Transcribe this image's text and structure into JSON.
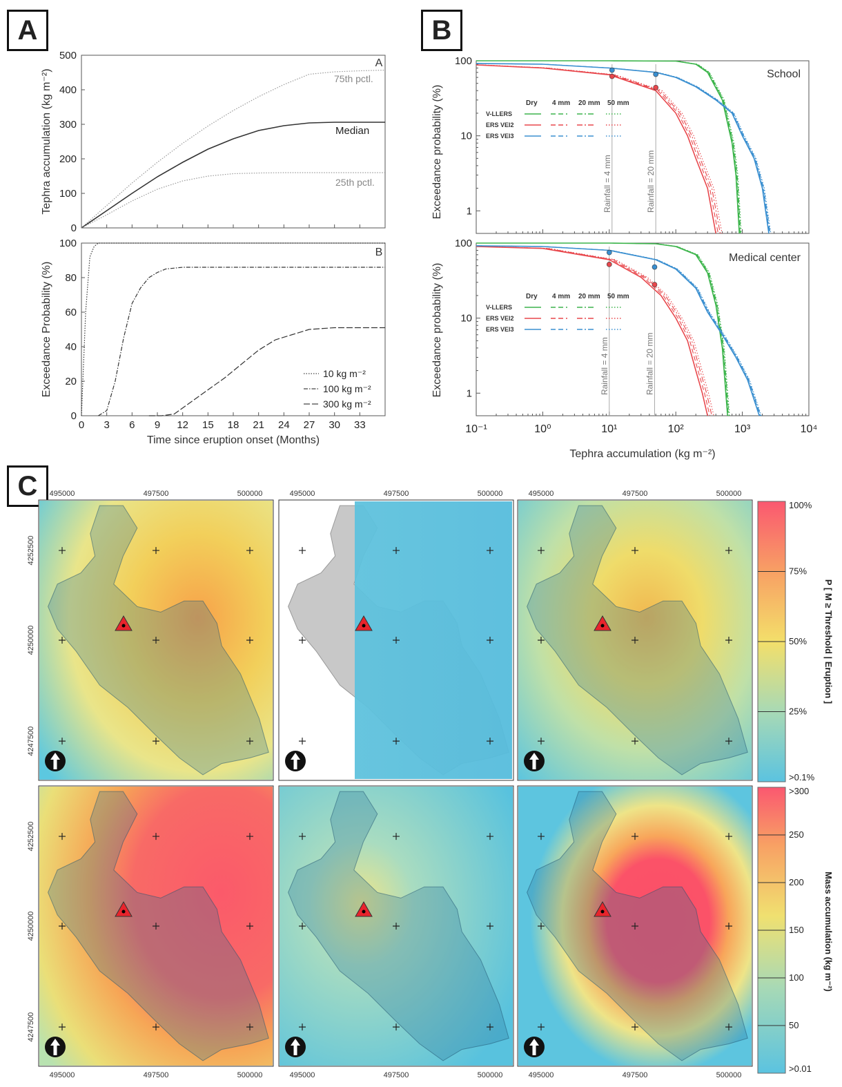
{
  "panel_labels": {
    "a": "A",
    "b": "B",
    "c": "C"
  },
  "panel_a": {
    "top": {
      "corner_label": "A",
      "ylabel": "Tephra accumulation (kg m⁻²)",
      "yticks": [
        "0",
        "100",
        "200",
        "300",
        "400",
        "500"
      ],
      "annotations": {
        "p75": "75th pctl.",
        "median": "Median",
        "p25": "25th pctl."
      }
    },
    "bottom": {
      "corner_label": "B",
      "ylabel": "Exceedance Probability (%)",
      "yticks": [
        "0",
        "20",
        "40",
        "60",
        "80",
        "100"
      ],
      "xticks": [
        "0",
        "3",
        "6",
        "9",
        "12",
        "15",
        "18",
        "21",
        "24",
        "27",
        "30",
        "33"
      ],
      "xlabel": "Time since eruption onset (Months)",
      "legend": [
        "10 kg m⁻²",
        "100 kg m⁻²",
        "300 kg m⁻²"
      ]
    }
  },
  "panel_b": {
    "ylabel": "Exceedance probability (%)",
    "xlabel": "Tephra accumulation (kg m⁻²)",
    "yticks": [
      "1",
      "10",
      "100"
    ],
    "xticks": [
      "10⁻¹",
      "10⁰",
      "10¹",
      "10²",
      "10³",
      "10⁴"
    ],
    "plots": [
      {
        "title": "School",
        "rain4": "Rainfall = 4 mm",
        "rain20": "Rainfall = 20 mm"
      },
      {
        "title": "Medical center",
        "rain4": "Rainfall = 4 mm",
        "rain20": "Rainfall = 20 mm"
      }
    ],
    "legend_cols": [
      "Dry",
      "4 mm",
      "20 mm",
      "50 mm"
    ],
    "legend_rows": [
      {
        "label": "V-LLERS",
        "color": "#3cb44b"
      },
      {
        "label": "ERS VEI2",
        "color": "#e8474c"
      },
      {
        "label": "ERS VEI3",
        "color": "#3a8fd0"
      }
    ]
  },
  "panel_c": {
    "x_coords": [
      "495000",
      "497500",
      "500000"
    ],
    "y_coords": [
      "4252500",
      "4250000",
      "4247500"
    ],
    "cb_top": {
      "label": "P [ M ≥ Threshold | Eruption ]",
      "ticks": [
        "100%",
        "75%",
        "50%",
        "25%",
        ">0.1%"
      ]
    },
    "cb_bottom": {
      "label": "Mass accumulation (kg m⁻²)",
      "ticks": [
        ">300",
        "250",
        "200",
        "150",
        "100",
        "50",
        ">0.01"
      ]
    }
  },
  "chart_data": [
    {
      "type": "line",
      "title": "",
      "xlabel": "Time since eruption onset (Months)",
      "ylabel": "Tephra accumulation (kg m⁻²)",
      "xlim": [
        0,
        36
      ],
      "ylim": [
        0,
        500
      ],
      "x": [
        0,
        3,
        6,
        9,
        12,
        15,
        18,
        21,
        24,
        27,
        30,
        33,
        36
      ],
      "series": [
        {
          "name": "75th pctl.",
          "values": [
            0,
            65,
            130,
            190,
            245,
            295,
            340,
            380,
            415,
            445,
            452,
            455,
            457
          ]
        },
        {
          "name": "Median",
          "values": [
            0,
            50,
            100,
            148,
            190,
            228,
            258,
            282,
            296,
            304,
            306,
            306,
            306
          ]
        },
        {
          "name": "25th pctl.",
          "values": [
            0,
            38,
            78,
            112,
            136,
            150,
            157,
            159,
            160,
            160,
            160,
            160,
            160
          ]
        }
      ]
    },
    {
      "type": "line",
      "title": "",
      "xlabel": "Time since eruption onset (Months)",
      "ylabel": "Exceedance Probability (%)",
      "xlim": [
        0,
        36
      ],
      "ylim": [
        0,
        100
      ],
      "series": [
        {
          "name": "10 kg m⁻²",
          "x": [
            0,
            0.5,
            1,
            1.5,
            2,
            2.5,
            36
          ],
          "values": [
            0,
            60,
            92,
            98,
            100,
            100,
            100
          ]
        },
        {
          "name": "100 kg m⁻²",
          "x": [
            2,
            3,
            4,
            5,
            6,
            7,
            8,
            9,
            10,
            12,
            15,
            36
          ],
          "values": [
            0,
            3,
            20,
            45,
            65,
            74,
            80,
            83,
            85,
            86,
            86,
            86
          ]
        },
        {
          "name": "300 kg m⁻²",
          "x": [
            8,
            9.5,
            11,
            13,
            15,
            17,
            19,
            21,
            23,
            25,
            27,
            30,
            33,
            36
          ],
          "values": [
            0,
            0,
            1,
            8,
            15,
            22,
            30,
            38,
            44,
            47,
            50,
            51,
            51,
            51
          ]
        }
      ]
    },
    {
      "type": "line",
      "title": "School",
      "xlabel": "Tephra accumulation (kg m⁻²)",
      "ylabel": "Exceedance probability (%)",
      "xscale": "log",
      "yscale": "log",
      "xlim": [
        0.1,
        10000
      ],
      "ylim": [
        0.5,
        100
      ],
      "series": [
        {
          "name": "V-LLERS",
          "x": [
            0.1,
            1,
            10,
            100,
            200,
            300,
            500,
            700,
            800,
            900
          ],
          "values": [
            100,
            100,
            100,
            99,
            90,
            70,
            30,
            8,
            3,
            0.5
          ]
        },
        {
          "name": "ERS VEI2",
          "x": [
            0.1,
            1,
            10,
            50,
            100,
            150,
            200,
            300,
            400
          ],
          "values": [
            88,
            80,
            65,
            40,
            20,
            10,
            5,
            2,
            0.5
          ]
        },
        {
          "name": "ERS VEI3",
          "x": [
            0.1,
            1,
            10,
            50,
            100,
            200,
            400,
            700,
            1000,
            1500,
            2000,
            2500
          ],
          "values": [
            92,
            90,
            80,
            70,
            60,
            45,
            30,
            20,
            10,
            5,
            2,
            0.5
          ]
        }
      ]
    },
    {
      "type": "line",
      "title": "Medical center",
      "xlabel": "Tephra accumulation (kg m⁻²)",
      "ylabel": "Exceedance probability (%)",
      "xscale": "log",
      "yscale": "log",
      "xlim": [
        0.1,
        10000
      ],
      "ylim": [
        0.5,
        100
      ],
      "series": [
        {
          "name": "V-LLERS",
          "x": [
            0.1,
            1,
            10,
            50,
            100,
            200,
            300,
            400,
            500,
            600
          ],
          "values": [
            100,
            100,
            100,
            98,
            90,
            70,
            40,
            15,
            4,
            0.5
          ]
        },
        {
          "name": "ERS VEI2",
          "x": [
            0.1,
            1,
            10,
            30,
            60,
            100,
            150,
            200,
            250,
            300
          ],
          "values": [
            90,
            85,
            60,
            35,
            20,
            10,
            5,
            2,
            1,
            0.5
          ]
        },
        {
          "name": "ERS VEI3",
          "x": [
            0.1,
            1,
            10,
            50,
            100,
            200,
            300,
            500,
            800,
            1200,
            1800
          ],
          "values": [
            92,
            90,
            80,
            60,
            45,
            25,
            12,
            6,
            3,
            1.5,
            0.5
          ]
        }
      ]
    }
  ]
}
